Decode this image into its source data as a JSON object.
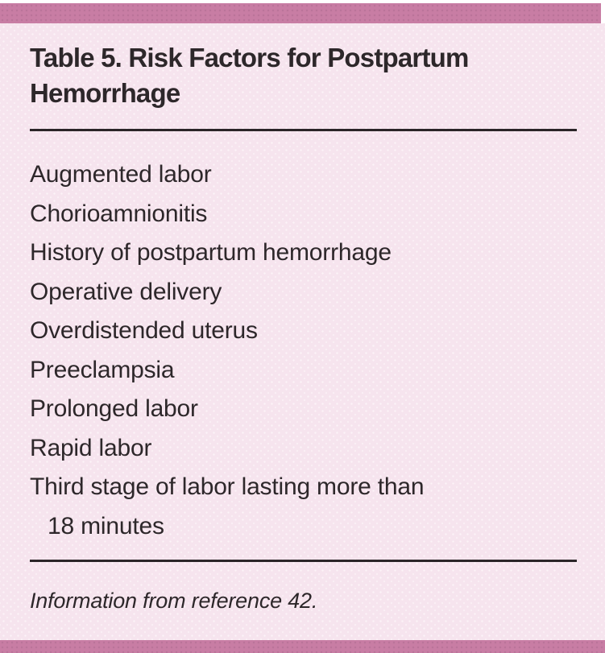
{
  "table": {
    "title": "Table 5. Risk Factors for Postpartum Hemorrhage",
    "rows": [
      "Augmented labor",
      "Chorioamnionitis",
      "History of postpartum hemorrhage",
      "Operative delivery",
      "Overdistended uterus",
      "Preeclampsia",
      "Prolonged labor",
      "Rapid labor",
      "Third stage of labor lasting more than\n18 minutes"
    ],
    "footnote": "Information from reference 42."
  },
  "colors": {
    "accent_bar": "#c87da4",
    "panel_bg": "#f6e4ee",
    "text": "#2d272a",
    "rule": "#2b2528"
  }
}
